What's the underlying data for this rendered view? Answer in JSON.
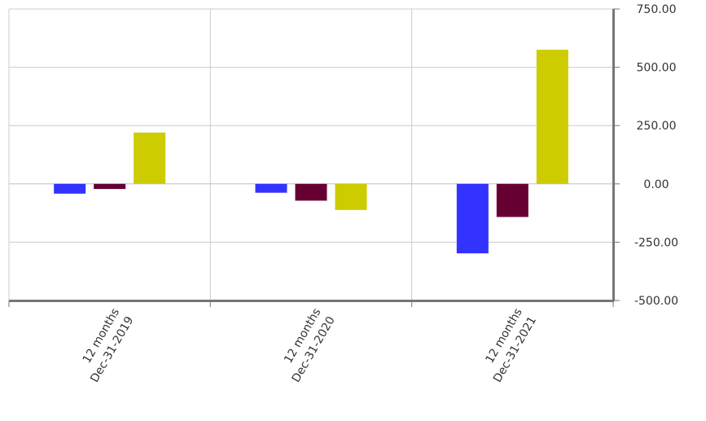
{
  "chart_data": {
    "type": "bar",
    "categories": [
      [
        "12 months",
        "Dec-31-2019"
      ],
      [
        "12 months",
        "Dec-31-2020"
      ],
      [
        "12 months",
        "Dec-31-2021"
      ]
    ],
    "series": [
      {
        "color": "#3333ff",
        "values": [
          -42,
          -38,
          -298
        ]
      },
      {
        "color": "#660033",
        "values": [
          -22,
          -72,
          -142
        ]
      },
      {
        "color": "#cccc00",
        "values": [
          220,
          -112,
          575
        ]
      }
    ],
    "ylim": [
      -500,
      750
    ],
    "yticks": [
      750,
      500,
      250,
      0,
      -250,
      -500
    ],
    "ytick_labels": [
      "750.00",
      "500.00",
      "250.00",
      "0.00",
      "-250.00",
      "-500.00"
    ],
    "y_axis_position": "right",
    "grid": true,
    "title": "",
    "xlabel": "",
    "ylabel": ""
  }
}
